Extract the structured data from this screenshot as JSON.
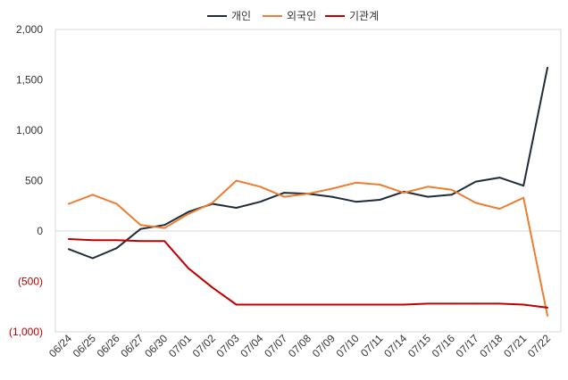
{
  "chart_data": {
    "type": "line",
    "categories": [
      "06/24",
      "06/25",
      "06/26",
      "06/27",
      "06/30",
      "07/01",
      "07/02",
      "07/03",
      "07/04",
      "07/07",
      "07/08",
      "07/09",
      "07/10",
      "07/11",
      "07/14",
      "07/15",
      "07/16",
      "07/17",
      "07/18",
      "07/21",
      "07/22"
    ],
    "series": [
      {
        "name": "개인",
        "color": "#1f2a3a",
        "values": [
          -180,
          -270,
          -170,
          20,
          60,
          190,
          270,
          230,
          290,
          380,
          370,
          340,
          290,
          310,
          390,
          340,
          360,
          490,
          530,
          450,
          1620
        ]
      },
      {
        "name": "외국인",
        "color": "#ed7d31",
        "values": [
          270,
          360,
          270,
          60,
          30,
          170,
          280,
          500,
          440,
          340,
          370,
          420,
          480,
          460,
          380,
          440,
          410,
          280,
          220,
          330,
          -840
        ]
      },
      {
        "name": "기관계",
        "color": "#c00000",
        "values": [
          -80,
          -90,
          -90,
          -100,
          -100,
          -370,
          -560,
          -730,
          -730,
          -730,
          -730,
          -730,
          -730,
          -730,
          -730,
          -720,
          -720,
          -720,
          -720,
          -730,
          -760
        ]
      }
    ],
    "ylim": [
      -1000,
      2000
    ],
    "y_ticks": [
      {
        "value": 2000,
        "label": "2,000"
      },
      {
        "value": 1500,
        "label": "1,500"
      },
      {
        "value": 1000,
        "label": "1,000"
      },
      {
        "value": 500,
        "label": "500"
      },
      {
        "value": 0,
        "label": "0"
      },
      {
        "value": -500,
        "label": "(500)"
      },
      {
        "value": -1000,
        "label": "(1,000)"
      }
    ],
    "legend_position": "top-center",
    "zero_line": true,
    "negative_label_color": "#c00000"
  }
}
